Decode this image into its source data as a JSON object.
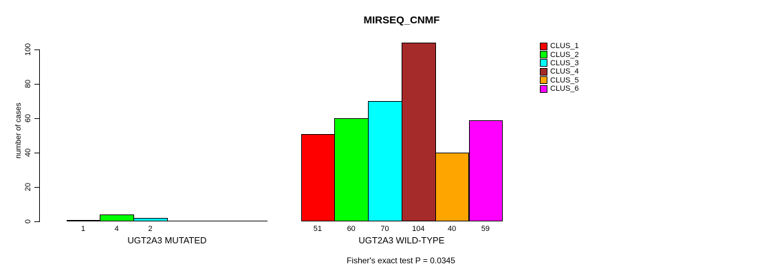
{
  "title": "MIRSEQ_CNMF",
  "ylabel": "number of cases",
  "footer": "Fisher's exact test P = 0.0345",
  "legend": [
    {
      "label": "CLUS_1",
      "color": "#FF0000"
    },
    {
      "label": "CLUS_2",
      "color": "#00FF00"
    },
    {
      "label": "CLUS_3",
      "color": "#00FFFF"
    },
    {
      "label": "CLUS_4",
      "color": "#A52A2A"
    },
    {
      "label": "CLUS_5",
      "color": "#FFA500"
    },
    {
      "label": "CLUS_6",
      "color": "#FF00FF"
    }
  ],
  "chart_data": {
    "type": "bar",
    "title": "MIRSEQ_CNMF",
    "ylabel": "number of cases",
    "ylim": [
      0,
      100
    ],
    "yticks": [
      0,
      20,
      40,
      60,
      80,
      100
    ],
    "grid": false,
    "legend_position": "right",
    "annotation": "Fisher's exact test P = 0.0345",
    "series_colors": [
      "#FF0000",
      "#00FF00",
      "#00FFFF",
      "#A52A2A",
      "#FFA500",
      "#FF00FF"
    ],
    "groups": [
      {
        "label": "UGT2A3 MUTATED",
        "clusters": [
          "CLUS_1",
          "CLUS_2",
          "CLUS_3"
        ],
        "values": [
          1,
          4,
          2
        ]
      },
      {
        "label": "UGT2A3 WILD-TYPE",
        "clusters": [
          "CLUS_1",
          "CLUS_2",
          "CLUS_3",
          "CLUS_4",
          "CLUS_5",
          "CLUS_6"
        ],
        "values": [
          51,
          60,
          70,
          104,
          40,
          59
        ]
      }
    ]
  }
}
